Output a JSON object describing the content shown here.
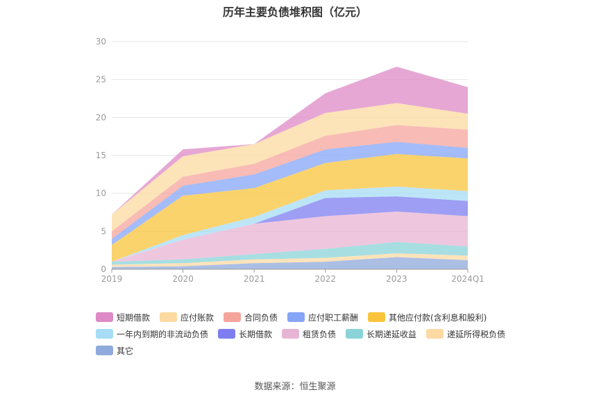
{
  "title": "历年主要负债堆积图（亿元）",
  "source": "数据来源：恒生聚源",
  "chart_data": {
    "type": "area",
    "stacked": true,
    "categories": [
      "2019",
      "2020",
      "2021",
      "2022",
      "2023",
      "2024Q1"
    ],
    "y_ticks": [
      "0",
      "5",
      "10",
      "15",
      "20",
      "25",
      "30"
    ],
    "ylim": [
      0,
      30
    ],
    "grid": true,
    "legend_position": "bottom",
    "series": [
      {
        "name": "其它",
        "color": "#8faadc",
        "values": [
          0.3,
          0.4,
          0.8,
          1.0,
          1.6,
          1.2
        ]
      },
      {
        "name": "递延所得税负债",
        "color": "#fdd9a3",
        "values": [
          0.3,
          0.4,
          0.5,
          0.5,
          0.5,
          0.6
        ]
      },
      {
        "name": "长期递延收益",
        "color": "#8ad3d8",
        "values": [
          0.4,
          0.5,
          0.7,
          1.2,
          1.5,
          1.2
        ]
      },
      {
        "name": "租赁负债",
        "color": "#e8b4d4",
        "values": [
          0.0,
          2.6,
          4.0,
          4.3,
          4.0,
          4.0
        ]
      },
      {
        "name": "长期借款",
        "color": "#7e7ef0",
        "values": [
          0.0,
          0.0,
          0.0,
          2.4,
          2.0,
          2.0
        ]
      },
      {
        "name": "一年内到期的非流动负债",
        "color": "#a6dcf5",
        "values": [
          0.0,
          0.6,
          0.9,
          1.0,
          1.3,
          1.3
        ]
      },
      {
        "name": "其他应付款(含利息和股利)",
        "color": "#f9c43c",
        "values": [
          2.2,
          5.2,
          3.8,
          3.6,
          4.3,
          4.3
        ]
      },
      {
        "name": "应付职工薪酬",
        "color": "#86a5f7",
        "values": [
          0.8,
          1.3,
          1.8,
          1.8,
          1.6,
          1.4
        ]
      },
      {
        "name": "合同负债",
        "color": "#f5a49c",
        "values": [
          1.0,
          1.2,
          1.4,
          1.8,
          2.2,
          2.4
        ]
      },
      {
        "name": "应付账款",
        "color": "#fcd9a0",
        "values": [
          2.2,
          2.7,
          2.6,
          3.0,
          2.9,
          2.1
        ]
      },
      {
        "name": "短期借款",
        "color": "#de8ac6",
        "values": [
          0.0,
          0.9,
          0.0,
          2.6,
          4.8,
          3.5
        ]
      }
    ]
  },
  "legend_order": [
    "短期借款",
    "应付账款",
    "合同负债",
    "应付职工薪酬",
    "其他应付款(含利息和股利)",
    "一年内到期的非流动负债",
    "长期借款",
    "租赁负债",
    "长期递延收益",
    "递延所得税负债",
    "其它"
  ]
}
